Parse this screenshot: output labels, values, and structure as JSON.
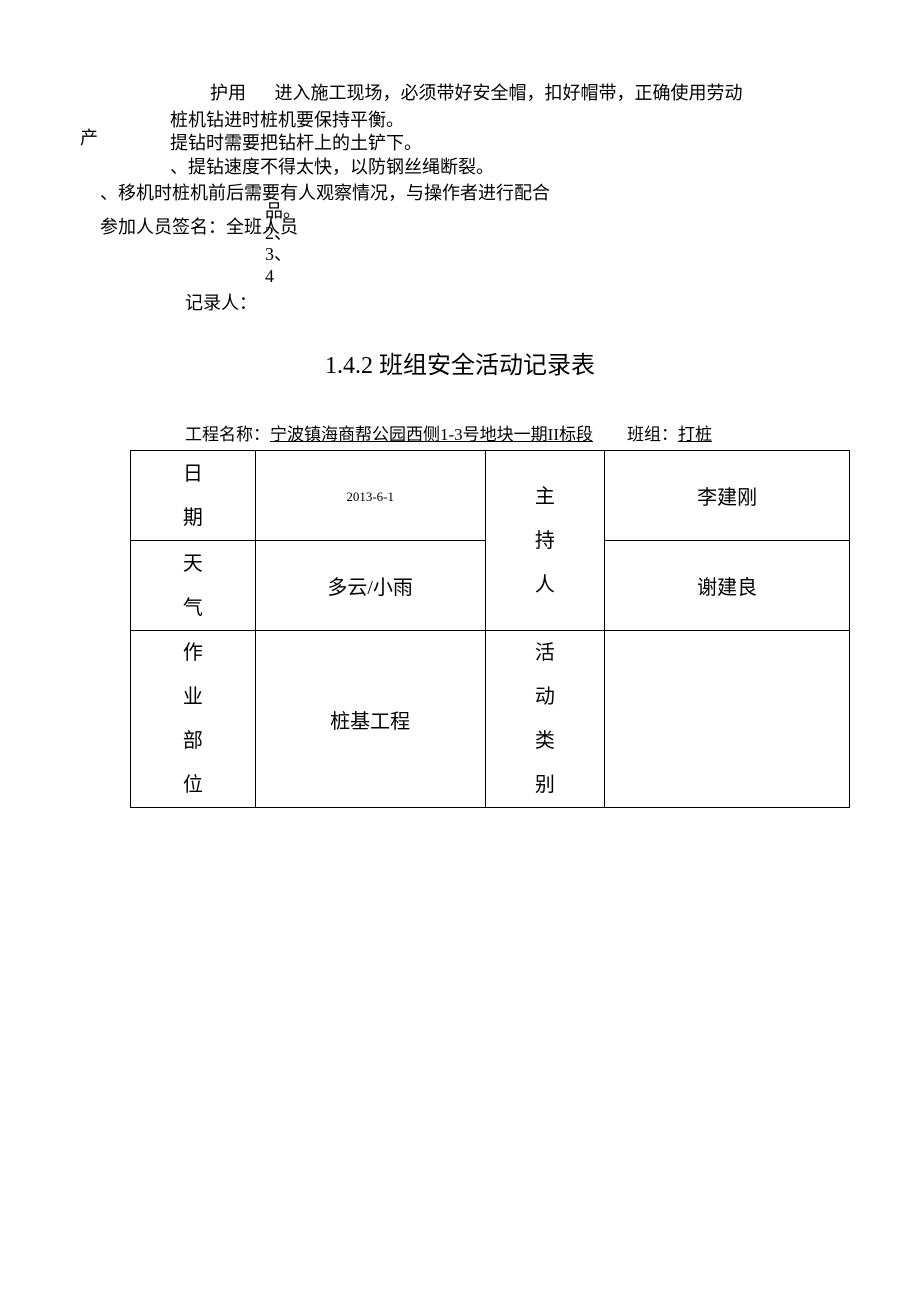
{
  "top": {
    "huYong": "护用",
    "line1Right": "进入施工现场，必须带好安全帽，扣好帽带，正确使用劳动",
    "chan": "产",
    "overlap1": "品。",
    "overlap2": "2、",
    "overlap3": "3、",
    "overlap4": "4",
    "item2": "桩机钻进时桩机要保持平衡。",
    "item3": "提钻时需要把钻杆上的土铲下。",
    "item4": "、提钻速度不得太快，以防钢丝绳断裂。",
    "item5": "、移机时桩机前后需要有人观察情况，与操作者进行配合",
    "signature": "参加人员签名：全班人员",
    "recorder": "记录人："
  },
  "title": "1.4.2 班组安全活动记录表",
  "projectLine": {
    "label1": "工程名称：",
    "value1": "宁波镇海商帮公园西侧1-3号地块一期II标段",
    "spacer": "　　",
    "label2": "班组：",
    "value2": "打桩"
  },
  "table": {
    "r1c1": "日期",
    "r1c2": "2013-6-1",
    "r1c3": "主持人",
    "r1c4": "李建刚",
    "r2c1": "天气",
    "r2c2": "多云/小雨",
    "r2c4": "谢建良",
    "r3c1": "作业部位",
    "r3c2": "桩基工程",
    "r3c3": "活动类别",
    "r3c4": ""
  },
  "styles": {
    "background": "#ffffff",
    "textColor": "#000000",
    "borderColor": "#000000",
    "bodyFontSize": 18,
    "titleFontSize": 24,
    "tableFontSize": 20,
    "dateFontSize": 13
  }
}
